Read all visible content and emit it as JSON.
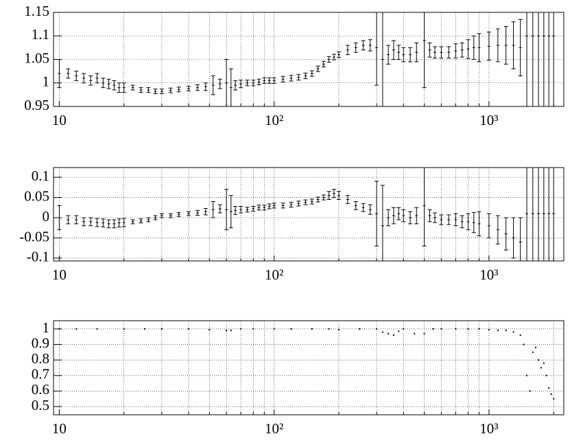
{
  "chart_data": [
    {
      "type": "errorbar",
      "log_x": true,
      "grid": true,
      "color": "#000000",
      "xlim": [
        9.4,
        2230
      ],
      "ylim": [
        0.95,
        1.15
      ],
      "xticks": [
        10,
        {
          "value": 100,
          "label": "10²"
        },
        {
          "value": 1000,
          "label": "10³"
        }
      ],
      "xminorticks": [
        20,
        30,
        40,
        50,
        60,
        70,
        80,
        90,
        200,
        300,
        400,
        500,
        600,
        700,
        800,
        900,
        2000
      ],
      "yticks": [
        0.95,
        1,
        1.05,
        1.1,
        1.15
      ],
      "x": [
        10,
        11,
        12,
        13,
        14,
        15,
        16,
        17,
        18,
        19,
        20,
        22,
        24,
        26,
        28,
        30,
        33,
        36,
        40,
        44,
        48,
        52,
        56,
        60,
        63,
        66,
        70,
        75,
        80,
        85,
        90,
        95,
        100,
        110,
        120,
        130,
        140,
        150,
        160,
        170,
        180,
        190,
        200,
        220,
        240,
        260,
        280,
        300,
        320,
        340,
        360,
        380,
        400,
        430,
        460,
        500,
        530,
        560,
        600,
        650,
        700,
        750,
        800,
        850,
        900,
        1000,
        1100,
        1200,
        1300,
        1400,
        1500,
        1600,
        1700,
        1800,
        1900,
        2000
      ],
      "values": [
        1.02,
        1.02,
        1.015,
        1.01,
        1.005,
        1.01,
        1.0,
        0.998,
        0.995,
        0.99,
        0.99,
        0.99,
        0.985,
        0.985,
        0.982,
        0.982,
        0.984,
        0.986,
        0.988,
        0.99,
        0.992,
        0.995,
        0.998,
        1.0,
        0.99,
        0.995,
        0.998,
        1.0,
        1.0,
        1.002,
        1.005,
        1.005,
        1.005,
        1.008,
        1.01,
        1.012,
        1.015,
        1.02,
        1.03,
        1.04,
        1.05,
        1.055,
        1.06,
        1.07,
        1.075,
        1.08,
        1.08,
        1.075,
        1.05,
        1.06,
        1.07,
        1.065,
        1.06,
        1.06,
        1.065,
        1.09,
        1.07,
        1.065,
        1.065,
        1.065,
        1.068,
        1.07,
        1.072,
        1.075,
        1.075,
        1.078,
        1.08,
        1.08,
        1.08,
        1.075,
        1.1,
        1.1,
        1.1,
        1.1,
        1.1,
        1.1
      ],
      "errors": [
        0.03,
        0.01,
        0.01,
        0.01,
        0.01,
        0.01,
        0.01,
        0.01,
        0.01,
        0.01,
        0.01,
        0.005,
        0.005,
        0.005,
        0.005,
        0.005,
        0.005,
        0.005,
        0.005,
        0.006,
        0.008,
        0.02,
        0.01,
        0.05,
        0.04,
        0.01,
        0.008,
        0.006,
        0.006,
        0.006,
        0.006,
        0.006,
        0.006,
        0.006,
        0.006,
        0.006,
        0.006,
        0.006,
        0.006,
        0.006,
        0.006,
        0.006,
        0.006,
        0.01,
        0.01,
        0.01,
        0.012,
        0.08,
        0.1,
        0.02,
        0.02,
        0.015,
        0.015,
        0.015,
        0.02,
        0.1,
        0.015,
        0.012,
        0.012,
        0.012,
        0.015,
        0.015,
        0.02,
        0.025,
        0.03,
        0.03,
        0.035,
        0.04,
        0.05,
        0.06,
        0.2,
        0.2,
        0.2,
        0.2,
        0.2,
        0.2
      ]
    },
    {
      "type": "errorbar",
      "log_x": true,
      "grid": true,
      "color": "#000000",
      "xlim": [
        9.4,
        2230
      ],
      "ylim": [
        -0.107,
        0.124
      ],
      "xticks": [
        10,
        {
          "value": 100,
          "label": "10²"
        },
        {
          "value": 1000,
          "label": "10³"
        }
      ],
      "xminorticks": [
        20,
        30,
        40,
        50,
        60,
        70,
        80,
        90,
        200,
        300,
        400,
        500,
        600,
        700,
        800,
        900,
        2000
      ],
      "yticks": [
        -0.1,
        -0.05,
        0,
        0.05,
        0.1
      ],
      "x": [
        10,
        11,
        12,
        13,
        14,
        15,
        16,
        17,
        18,
        19,
        20,
        22,
        24,
        26,
        28,
        30,
        33,
        36,
        40,
        44,
        48,
        52,
        56,
        60,
        63,
        66,
        70,
        75,
        80,
        85,
        90,
        95,
        100,
        110,
        120,
        130,
        140,
        150,
        160,
        170,
        180,
        190,
        200,
        220,
        240,
        260,
        280,
        300,
        320,
        340,
        360,
        380,
        400,
        430,
        460,
        500,
        530,
        560,
        600,
        650,
        700,
        750,
        800,
        850,
        900,
        1000,
        1100,
        1200,
        1300,
        1400,
        1500,
        1600,
        1700,
        1800,
        1900,
        2000
      ],
      "values": [
        0,
        -0.005,
        -0.005,
        -0.01,
        -0.01,
        -0.012,
        -0.013,
        -0.015,
        -0.015,
        -0.013,
        -0.012,
        -0.01,
        -0.008,
        -0.005,
        0,
        0.005,
        0.005,
        0.008,
        0.01,
        0.012,
        0.015,
        0.02,
        0.022,
        0.02,
        0.015,
        0.018,
        0.02,
        0.02,
        0.022,
        0.025,
        0.025,
        0.028,
        0.03,
        0.03,
        0.032,
        0.035,
        0.038,
        0.04,
        0.045,
        0.05,
        0.055,
        0.06,
        0.055,
        0.045,
        0.03,
        0.025,
        0.02,
        0.01,
        -0.02,
        0,
        0.005,
        0.01,
        0.005,
        0,
        0.005,
        0.03,
        0.005,
        0,
        -0.005,
        -0.005,
        -0.005,
        -0.01,
        -0.01,
        -0.012,
        -0.015,
        -0.02,
        -0.03,
        -0.04,
        -0.05,
        -0.06,
        0.01,
        0.01,
        0.01,
        0.01,
        0.01,
        0.01
      ],
      "errors": [
        0.03,
        0.01,
        0.01,
        0.01,
        0.01,
        0.01,
        0.01,
        0.01,
        0.01,
        0.01,
        0.01,
        0.005,
        0.005,
        0.005,
        0.005,
        0.005,
        0.005,
        0.005,
        0.005,
        0.006,
        0.008,
        0.02,
        0.01,
        0.05,
        0.04,
        0.01,
        0.008,
        0.006,
        0.006,
        0.006,
        0.006,
        0.006,
        0.006,
        0.006,
        0.006,
        0.006,
        0.006,
        0.006,
        0.006,
        0.006,
        0.01,
        0.01,
        0.01,
        0.01,
        0.01,
        0.01,
        0.012,
        0.08,
        0.1,
        0.02,
        0.02,
        0.015,
        0.015,
        0.015,
        0.02,
        0.1,
        0.015,
        0.012,
        0.012,
        0.012,
        0.015,
        0.015,
        0.02,
        0.025,
        0.03,
        0.03,
        0.035,
        0.04,
        0.05,
        0.06,
        0.2,
        0.2,
        0.2,
        0.2,
        0.2,
        0.2
      ]
    },
    {
      "type": "scatter",
      "log_x": true,
      "grid": true,
      "color": "#000000",
      "xlim": [
        9.4,
        2230
      ],
      "ylim": [
        0.447,
        1.053
      ],
      "xticks": [
        10,
        {
          "value": 100,
          "label": "10²"
        },
        {
          "value": 1000,
          "label": "10³"
        }
      ],
      "xminorticks": [
        20,
        30,
        40,
        50,
        60,
        70,
        80,
        90,
        200,
        300,
        400,
        500,
        600,
        700,
        800,
        900,
        2000
      ],
      "yticks": [
        0.5,
        0.6,
        0.7,
        0.8,
        0.9,
        1
      ],
      "x": [
        10,
        12,
        15,
        20,
        25,
        30,
        40,
        50,
        60,
        63,
        70,
        80,
        100,
        120,
        150,
        180,
        200,
        250,
        300,
        320,
        340,
        360,
        380,
        400,
        450,
        500,
        550,
        600,
        700,
        800,
        900,
        1000,
        1100,
        1200,
        1300,
        1400,
        1450,
        1500,
        1550,
        1600,
        1650,
        1700,
        1750,
        1800,
        1850,
        1900,
        1950,
        2000
      ],
      "values": [
        1,
        1,
        1,
        1,
        1,
        1,
        1,
        0.995,
        0.99,
        0.99,
        1,
        1,
        1,
        1,
        1,
        1,
        0.995,
        1,
        1,
        0.98,
        0.97,
        0.96,
        0.985,
        1,
        0.97,
        0.97,
        1,
        1,
        1,
        1,
        1,
        0.995,
        0.99,
        0.99,
        0.98,
        0.96,
        0.9,
        0.7,
        0.6,
        0.85,
        0.88,
        0.8,
        0.75,
        0.78,
        0.7,
        0.62,
        0.58,
        0.55
      ]
    }
  ]
}
